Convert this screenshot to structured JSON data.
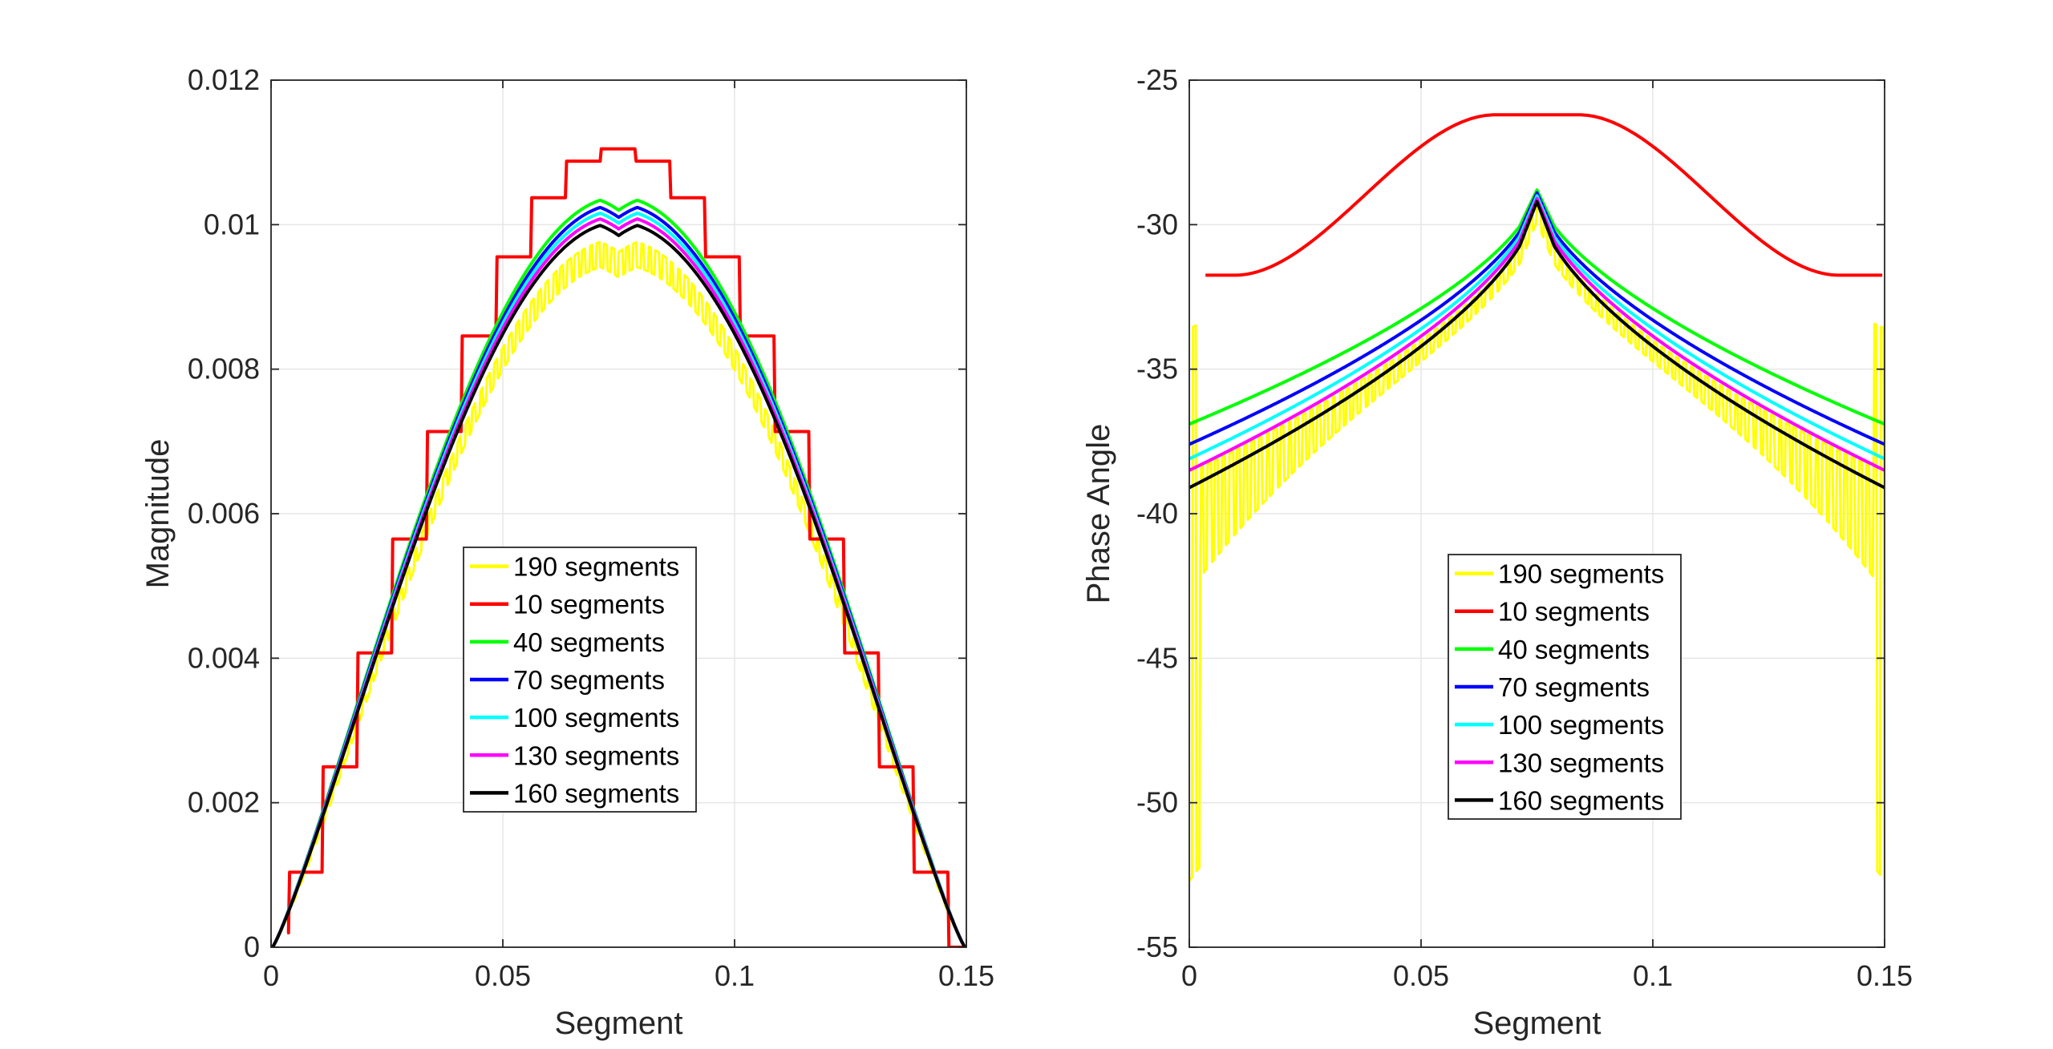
{
  "chart_data": [
    {
      "type": "line",
      "xlabel": "Segment",
      "ylabel": "Magnitude",
      "xlim": [
        0,
        0.15
      ],
      "ylim": [
        0,
        0.012
      ],
      "xticks": [
        0,
        0.05,
        0.1,
        0.15
      ],
      "xtick_labels": [
        "0",
        "0.05",
        "0.1",
        "0.15"
      ],
      "yticks": [
        0,
        0.002,
        0.004,
        0.006,
        0.008,
        0.01,
        0.012
      ],
      "ytick_labels": [
        "0",
        "0.002",
        "0.004",
        "0.006",
        "0.008",
        "0.01",
        "0.012"
      ],
      "grid": true,
      "legend_position": "center-bottom",
      "series": [
        {
          "name": "190 segments",
          "color": "#ffff00",
          "shape": "mag",
          "peak": 0.0098,
          "n": 190
        },
        {
          "name": "10 segments",
          "color": "#ff0000",
          "shape": "mag",
          "peak": 0.01105,
          "n": 10
        },
        {
          "name": "40 segments",
          "color": "#00ff00",
          "shape": "mag",
          "peak": 0.01038,
          "n": 40
        },
        {
          "name": "70 segments",
          "color": "#0000ff",
          "shape": "mag",
          "peak": 0.01028,
          "n": 70
        },
        {
          "name": "100 segments",
          "color": "#00ffff",
          "shape": "mag",
          "peak": 0.0102,
          "n": 100
        },
        {
          "name": "130 segments",
          "color": "#ff00ff",
          "shape": "mag",
          "peak": 0.01012,
          "n": 130
        },
        {
          "name": "160 segments",
          "color": "#000000",
          "shape": "mag",
          "peak": 0.01003,
          "n": 160
        }
      ]
    },
    {
      "type": "line",
      "xlabel": "Segment",
      "ylabel": "Phase Angle",
      "xlim": [
        0,
        0.15
      ],
      "ylim": [
        -55,
        -25
      ],
      "xticks": [
        0,
        0.05,
        0.1,
        0.15
      ],
      "xtick_labels": [
        "0",
        "0.05",
        "0.1",
        "0.15"
      ],
      "yticks": [
        -55,
        -50,
        -45,
        -40,
        -35,
        -30,
        -25
      ],
      "ytick_labels": [
        "-55",
        "-50",
        "-45",
        "-40",
        "-35",
        "-30",
        "-25"
      ],
      "grid": true,
      "legend_position": "center-bottom",
      "series": [
        {
          "name": "190 segments",
          "color": "#ffff00",
          "shape": "phase",
          "edge": -38.6,
          "peak": -29.3,
          "n": 190
        },
        {
          "name": "10 segments",
          "color": "#ff0000",
          "shape": "phase",
          "edge": -31.75,
          "peak": -26.2,
          "n": 10
        },
        {
          "name": "40 segments",
          "color": "#00ff00",
          "shape": "phase",
          "edge": -36.9,
          "peak": -28.8,
          "n": 40
        },
        {
          "name": "70 segments",
          "color": "#0000ff",
          "shape": "phase",
          "edge": -37.6,
          "peak": -28.9,
          "n": 70
        },
        {
          "name": "100 segments",
          "color": "#00ffff",
          "shape": "phase",
          "edge": -38.1,
          "peak": -29.0,
          "n": 100
        },
        {
          "name": "130 segments",
          "color": "#ff00ff",
          "shape": "phase",
          "edge": -38.5,
          "peak": -29.1,
          "n": 130
        },
        {
          "name": "160 segments",
          "color": "#000000",
          "shape": "phase",
          "edge": -39.1,
          "peak": -29.2,
          "n": 160
        }
      ]
    }
  ]
}
